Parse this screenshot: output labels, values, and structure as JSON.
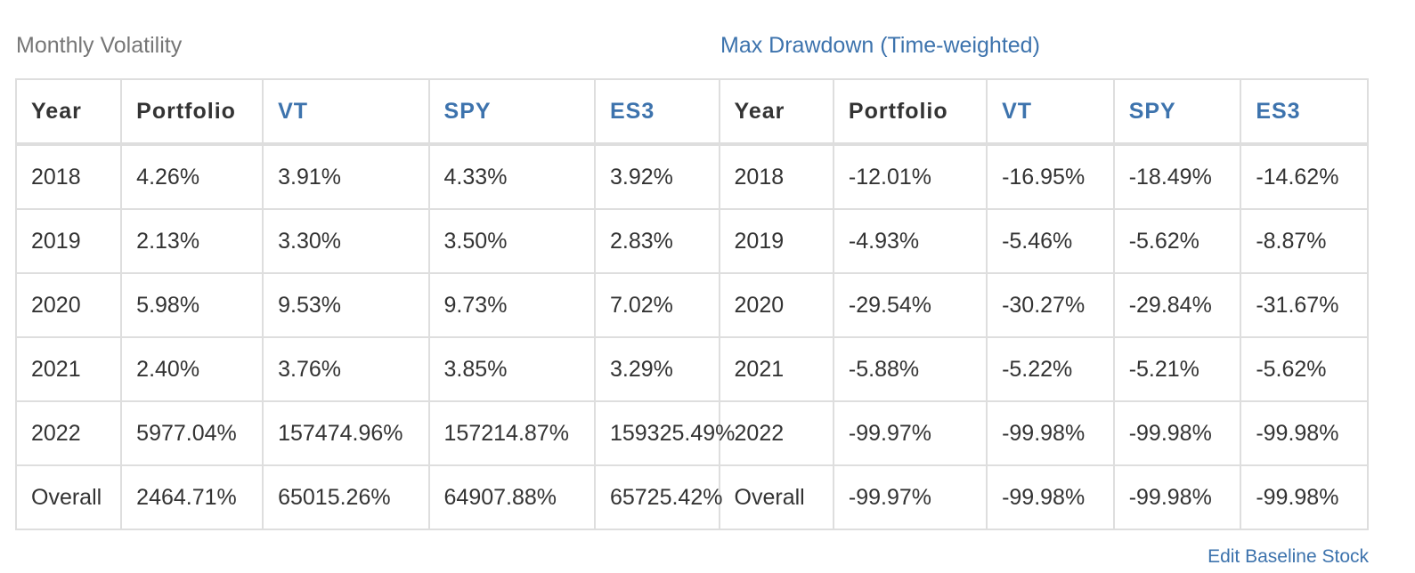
{
  "volatility": {
    "title": "Monthly Volatility",
    "headers": [
      "Year",
      "Portfolio",
      "VT",
      "SPY",
      "ES3"
    ],
    "rows": [
      [
        "2018",
        "4.26%",
        "3.91%",
        "4.33%",
        "3.92%"
      ],
      [
        "2019",
        "2.13%",
        "3.30%",
        "3.50%",
        "2.83%"
      ],
      [
        "2020",
        "5.98%",
        "9.53%",
        "9.73%",
        "7.02%"
      ],
      [
        "2021",
        "2.40%",
        "3.76%",
        "3.85%",
        "3.29%"
      ],
      [
        "2022",
        "5977.04%",
        "157474.96%",
        "157214.87%",
        "159325.49%"
      ],
      [
        "Overall",
        "2464.71%",
        "65015.26%",
        "64907.88%",
        "65725.42%"
      ]
    ]
  },
  "drawdown": {
    "title": "Max Drawdown (Time-weighted)",
    "headers": [
      "Year",
      "Portfolio",
      "VT",
      "SPY",
      "ES3"
    ],
    "rows": [
      [
        "2018",
        "-12.01%",
        "-16.95%",
        "-18.49%",
        "-14.62%"
      ],
      [
        "2019",
        "-4.93%",
        "-5.46%",
        "-5.62%",
        "-8.87%"
      ],
      [
        "2020",
        "-29.54%",
        "-30.27%",
        "-29.84%",
        "-31.67%"
      ],
      [
        "2021",
        "-5.88%",
        "-5.22%",
        "-5.21%",
        "-5.62%"
      ],
      [
        "2022",
        "-99.97%",
        "-99.98%",
        "-99.98%",
        "-99.98%"
      ],
      [
        "Overall",
        "-99.97%",
        "-99.98%",
        "-99.98%",
        "-99.98%"
      ]
    ]
  },
  "footer": {
    "edit_baseline_label": "Edit Baseline Stock"
  },
  "colors": {
    "link": "#3d73ad",
    "muted_title": "#767676",
    "text": "#333333",
    "border": "#dedede"
  }
}
